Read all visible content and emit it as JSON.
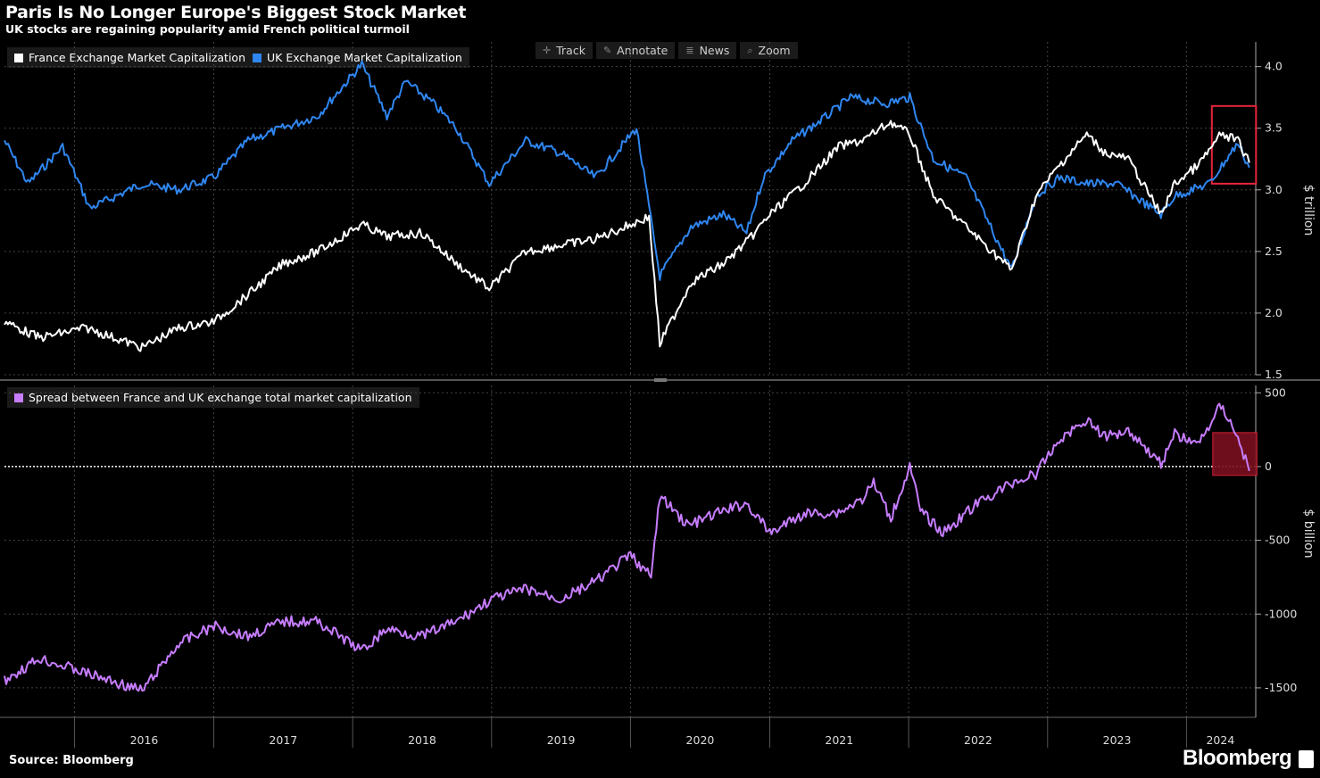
{
  "title": "Paris Is No Longer Europe's Biggest Stock Market",
  "subtitle": "UK stocks are regaining popularity amid French political turmoil",
  "toolbar": [
    {
      "label": "Track",
      "icon": "crosshair-icon"
    },
    {
      "label": "Annotate",
      "icon": "pencil-icon"
    },
    {
      "label": "News",
      "icon": "news-icon"
    },
    {
      "label": "Zoom",
      "icon": "zoom-icon"
    }
  ],
  "source": "Source: Bloomberg",
  "brand": "Bloomberg",
  "colors": {
    "france": "#ffffff",
    "uk": "#2f86f0",
    "spread": "#c77dff",
    "highlight": "#e8253c",
    "highlight_fill": "#7a1020"
  },
  "chart_data": [
    {
      "type": "line",
      "legend": [
        "France Exchange Market Capitalization",
        "UK Exchange Market Capitalization"
      ],
      "ylabel": "$ trillion",
      "y_ticks": [
        "4.0",
        "3.5",
        "3.0",
        "2.5",
        "2.0",
        "1.5"
      ],
      "ylim": [
        1.5,
        4.2
      ],
      "x_tick_labels": [
        "2016",
        "2017",
        "2018",
        "2019",
        "2020",
        "2021",
        "2022",
        "2023",
        "2024"
      ],
      "xlim": [
        "2015-07-01",
        "2024-07-01"
      ],
      "grid": true,
      "legend_position": "top-left",
      "series": [
        {
          "name": "France Exchange Market Capitalization",
          "x": [
            "2015-07-01",
            "2015-10-01",
            "2016-02-01",
            "2016-06-27",
            "2016-10-01",
            "2017-01-01",
            "2017-04-01",
            "2017-07-01",
            "2017-10-01",
            "2018-01-25",
            "2018-04-01",
            "2018-07-01",
            "2018-10-01",
            "2018-12-26",
            "2019-04-01",
            "2019-07-01",
            "2019-10-01",
            "2020-02-19",
            "2020-03-18",
            "2020-06-08",
            "2020-09-01",
            "2020-11-09",
            "2021-01-01",
            "2021-04-01",
            "2021-07-01",
            "2021-09-01",
            "2021-11-15",
            "2022-01-04",
            "2022-03-07",
            "2022-06-01",
            "2022-09-29",
            "2022-12-01",
            "2023-02-01",
            "2023-04-14",
            "2023-06-01",
            "2023-08-01",
            "2023-10-26",
            "2023-12-01",
            "2024-02-01",
            "2024-04-01",
            "2024-05-15",
            "2024-06-14"
          ],
          "y": [
            1.93,
            1.8,
            1.88,
            1.72,
            1.88,
            1.93,
            2.15,
            2.4,
            2.5,
            2.72,
            2.62,
            2.65,
            2.4,
            2.2,
            2.5,
            2.55,
            2.6,
            2.78,
            1.75,
            2.25,
            2.4,
            2.6,
            2.8,
            3.05,
            3.35,
            3.4,
            3.55,
            3.45,
            2.95,
            2.7,
            2.35,
            2.95,
            3.2,
            3.45,
            3.3,
            3.25,
            2.8,
            3.05,
            3.2,
            3.45,
            3.4,
            3.22
          ]
        },
        {
          "name": "UK Exchange Market Capitalization",
          "x": [
            "2015-07-01",
            "2015-09-01",
            "2015-12-01",
            "2016-02-11",
            "2016-06-27",
            "2016-10-01",
            "2017-01-01",
            "2017-04-01",
            "2017-07-01",
            "2017-10-01",
            "2018-01-25",
            "2018-04-01",
            "2018-05-21",
            "2018-08-01",
            "2018-10-01",
            "2018-12-26",
            "2019-04-01",
            "2019-07-01",
            "2019-10-01",
            "2020-01-17",
            "2020-03-18",
            "2020-06-08",
            "2020-09-01",
            "2020-11-01",
            "2020-12-15",
            "2021-03-01",
            "2021-06-01",
            "2021-08-01",
            "2021-11-01",
            "2022-01-04",
            "2022-03-07",
            "2022-06-01",
            "2022-09-29",
            "2022-12-01",
            "2023-02-01",
            "2023-04-14",
            "2023-07-01",
            "2023-10-26",
            "2023-12-01",
            "2024-03-01",
            "2024-05-15",
            "2024-06-14"
          ],
          "y": [
            3.4,
            3.05,
            3.35,
            2.85,
            3.05,
            3.0,
            3.1,
            3.4,
            3.5,
            3.6,
            4.02,
            3.6,
            3.88,
            3.7,
            3.5,
            3.05,
            3.4,
            3.3,
            3.1,
            3.5,
            2.3,
            2.7,
            2.8,
            2.65,
            3.1,
            3.4,
            3.6,
            3.75,
            3.7,
            3.75,
            3.25,
            3.1,
            2.35,
            2.95,
            3.1,
            3.05,
            3.05,
            2.8,
            2.95,
            3.05,
            3.38,
            3.18
          ]
        }
      ]
    },
    {
      "type": "area",
      "legend": [
        "Spread between France and UK exchange total market capitalization"
      ],
      "ylabel": "$ billion",
      "y_ticks": [
        "500",
        "0",
        "-500",
        "-1000",
        "-1500"
      ],
      "ylim": [
        -1700,
        550
      ],
      "grid": true,
      "legend_position": "top-left",
      "series": [
        {
          "name": "Spread between France and UK exchange total market capitalization",
          "x": [
            "2015-07-01",
            "2015-10-01",
            "2016-02-01",
            "2016-06-27",
            "2016-10-01",
            "2017-01-01",
            "2017-04-01",
            "2017-07-01",
            "2017-10-01",
            "2018-01-25",
            "2018-04-01",
            "2018-07-01",
            "2018-10-01",
            "2019-01-01",
            "2019-04-01",
            "2019-07-01",
            "2019-10-01",
            "2020-01-01",
            "2020-02-24",
            "2020-03-18",
            "2020-06-01",
            "2020-09-01",
            "2020-11-01",
            "2021-01-01",
            "2021-04-01",
            "2021-07-01",
            "2021-09-01",
            "2021-10-01",
            "2021-11-15",
            "2022-01-04",
            "2022-02-01",
            "2022-04-01",
            "2022-07-01",
            "2022-10-01",
            "2022-12-01",
            "2023-02-01",
            "2023-04-14",
            "2023-06-01",
            "2023-08-01",
            "2023-10-26",
            "2023-12-01",
            "2024-02-01",
            "2024-04-01",
            "2024-05-15",
            "2024-06-14"
          ],
          "y": [
            -1450,
            -1300,
            -1400,
            -1520,
            -1200,
            -1080,
            -1150,
            -1050,
            -1050,
            -1250,
            -1100,
            -1150,
            -1050,
            -900,
            -830,
            -900,
            -780,
            -600,
            -750,
            -200,
            -400,
            -300,
            -250,
            -450,
            -320,
            -310,
            -220,
            -110,
            -350,
            0,
            -300,
            -450,
            -250,
            -110,
            -50,
            180,
            320,
            200,
            250,
            20,
            220,
            150,
            420,
            200,
            -30
          ]
        }
      ]
    }
  ]
}
